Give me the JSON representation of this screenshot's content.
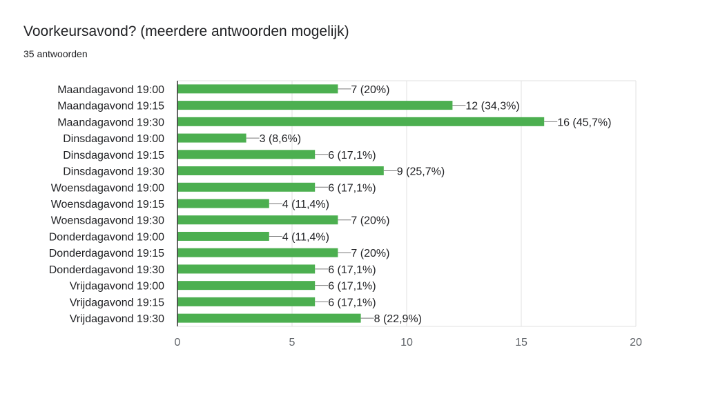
{
  "title": "Voorkeursavond? (meerdere antwoorden mogelijk)",
  "subtitle": "35 antwoorden",
  "colors": {
    "bar": "#4caf50",
    "text": "#202124",
    "axis_text": "#5f6368",
    "grid": "#e0e0e0",
    "axis": "#333333"
  },
  "chart_data": {
    "type": "bar",
    "orientation": "horizontal",
    "title": "Voorkeursavond? (meerdere antwoorden mogelijk)",
    "categories": [
      "Maandagavond 19:00",
      "Maandagavond 19:15",
      "Maandagavond 19:30",
      "Dinsdagavond 19:00",
      "Dinsdagavond 19:15",
      "Dinsdagavond 19:30",
      "Woensdagavond 19:00",
      "Woensdagavond 19:15",
      "Woensdagavond 19:30",
      "Donderdagavond 19:00",
      "Donderdagavond 19:15",
      "Donderdagavond 19:30",
      "Vrijdagavond 19:00",
      "Vrijdagavond 19:15",
      "Vrijdagavond 19:30"
    ],
    "values": [
      7,
      12,
      16,
      3,
      6,
      9,
      6,
      4,
      7,
      4,
      7,
      6,
      6,
      6,
      8
    ],
    "data_labels": [
      "7 (20%)",
      "12 (34,3%)",
      "16 (45,7%)",
      "3 (8,6%)",
      "6 (17,1%)",
      "9 (25,7%)",
      "6 (17,1%)",
      "4 (11,4%)",
      "7 (20%)",
      "4 (11,4%)",
      "7 (20%)",
      "6 (17,1%)",
      "6 (17,1%)",
      "6 (17,1%)",
      "8 (22,9%)"
    ],
    "xlim": [
      0,
      20
    ],
    "xticks": [
      0,
      5,
      10,
      15,
      20
    ],
    "grid": true
  }
}
